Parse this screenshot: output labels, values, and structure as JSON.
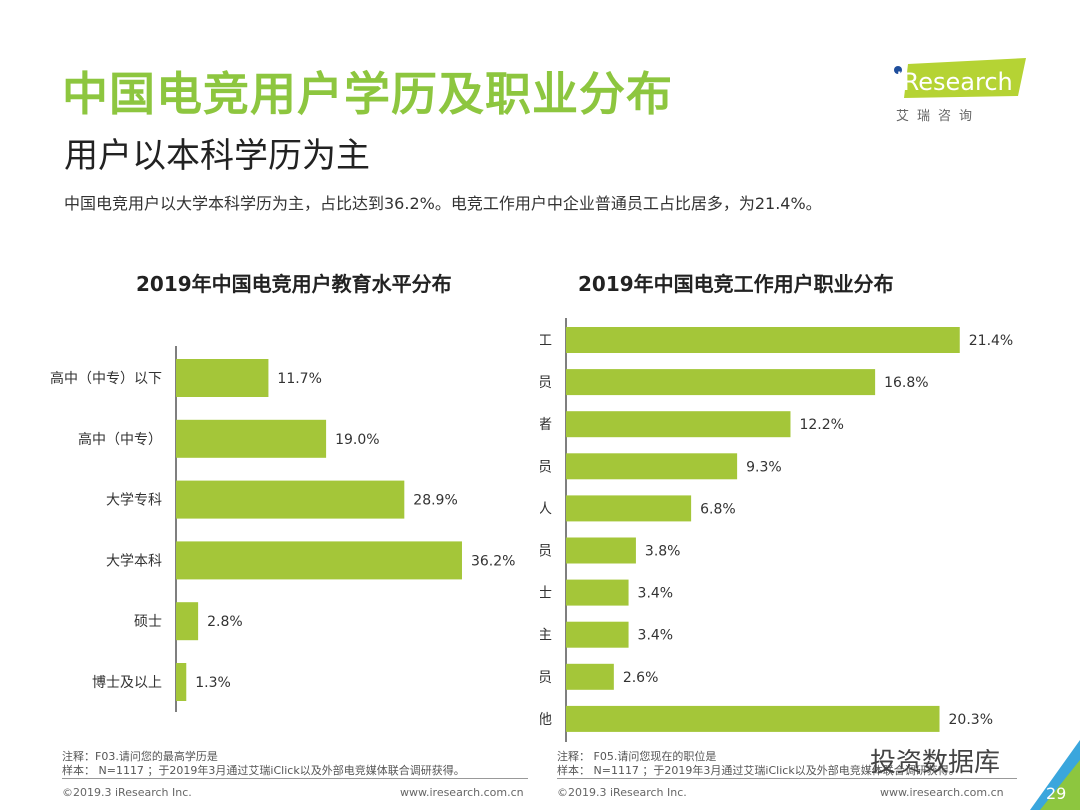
{
  "header": {
    "title": "中国电竞用户学历及职业分布",
    "subtitle": "用户以本科学历为主",
    "summary": "中国电竞用户以大学本科学历为主，占比达到36.2%。电竞工作用户中企业普通员工占比居多，为21.4%。"
  },
  "logo": {
    "brand": "iResearch",
    "cn": "艾 瑞 咨 询"
  },
  "colors": {
    "accent": "#8dc63f",
    "bar": "#a4c639",
    "axis": "#555555"
  },
  "chart_data": [
    {
      "type": "bar",
      "orientation": "horizontal",
      "title": "2019年中国电竞用户教育水平分布",
      "categories": [
        "高中（中专）以下",
        "高中（中专）",
        "大学专科",
        "大学本科",
        "硕士",
        "博士及以上"
      ],
      "values": [
        11.7,
        19.0,
        28.9,
        36.2,
        2.8,
        1.3
      ],
      "labels": [
        "11.7%",
        "19.0%",
        "28.9%",
        "36.2%",
        "2.8%",
        "1.3%"
      ],
      "xlim": [
        0,
        40
      ],
      "grid": false
    },
    {
      "type": "bar",
      "orientation": "horizontal",
      "title": "2019年中国电竞工作用户职业分布",
      "categories": [
        "企业普通员工",
        "专业技术人员",
        "自由职业者",
        "企业一般管理人员",
        "工人",
        "企业中层管理人员",
        "专业人士",
        "私营业主",
        "公务员",
        "其他"
      ],
      "values": [
        21.4,
        16.8,
        12.2,
        9.3,
        6.8,
        3.8,
        3.4,
        3.4,
        2.6,
        20.3
      ],
      "labels": [
        "21.4%",
        "16.8%",
        "12.2%",
        "9.3%",
        "6.8%",
        "3.8%",
        "3.4%",
        "3.4%",
        "2.6%",
        "20.3%"
      ],
      "xlim": [
        0,
        25
      ],
      "grid": false
    }
  ],
  "notes": {
    "left": {
      "note": "注释：F03.请问您的最高学历是",
      "sample": "样本： N=1117 ；于2019年3月通过艾瑞iClick以及外部电竞媒体联合调研获得。"
    },
    "right": {
      "note": "注释： F05.请问您现在的职位是",
      "sample": "样本： N=1117 ；于2019年3月通过艾瑞iClick以及外部电竞媒体联合调研获得。"
    }
  },
  "footer": {
    "copyright": "©2019.3 iResearch Inc.",
    "url": "www.iresearch.com.cn",
    "page": "29",
    "watermark": "投资数据库"
  }
}
